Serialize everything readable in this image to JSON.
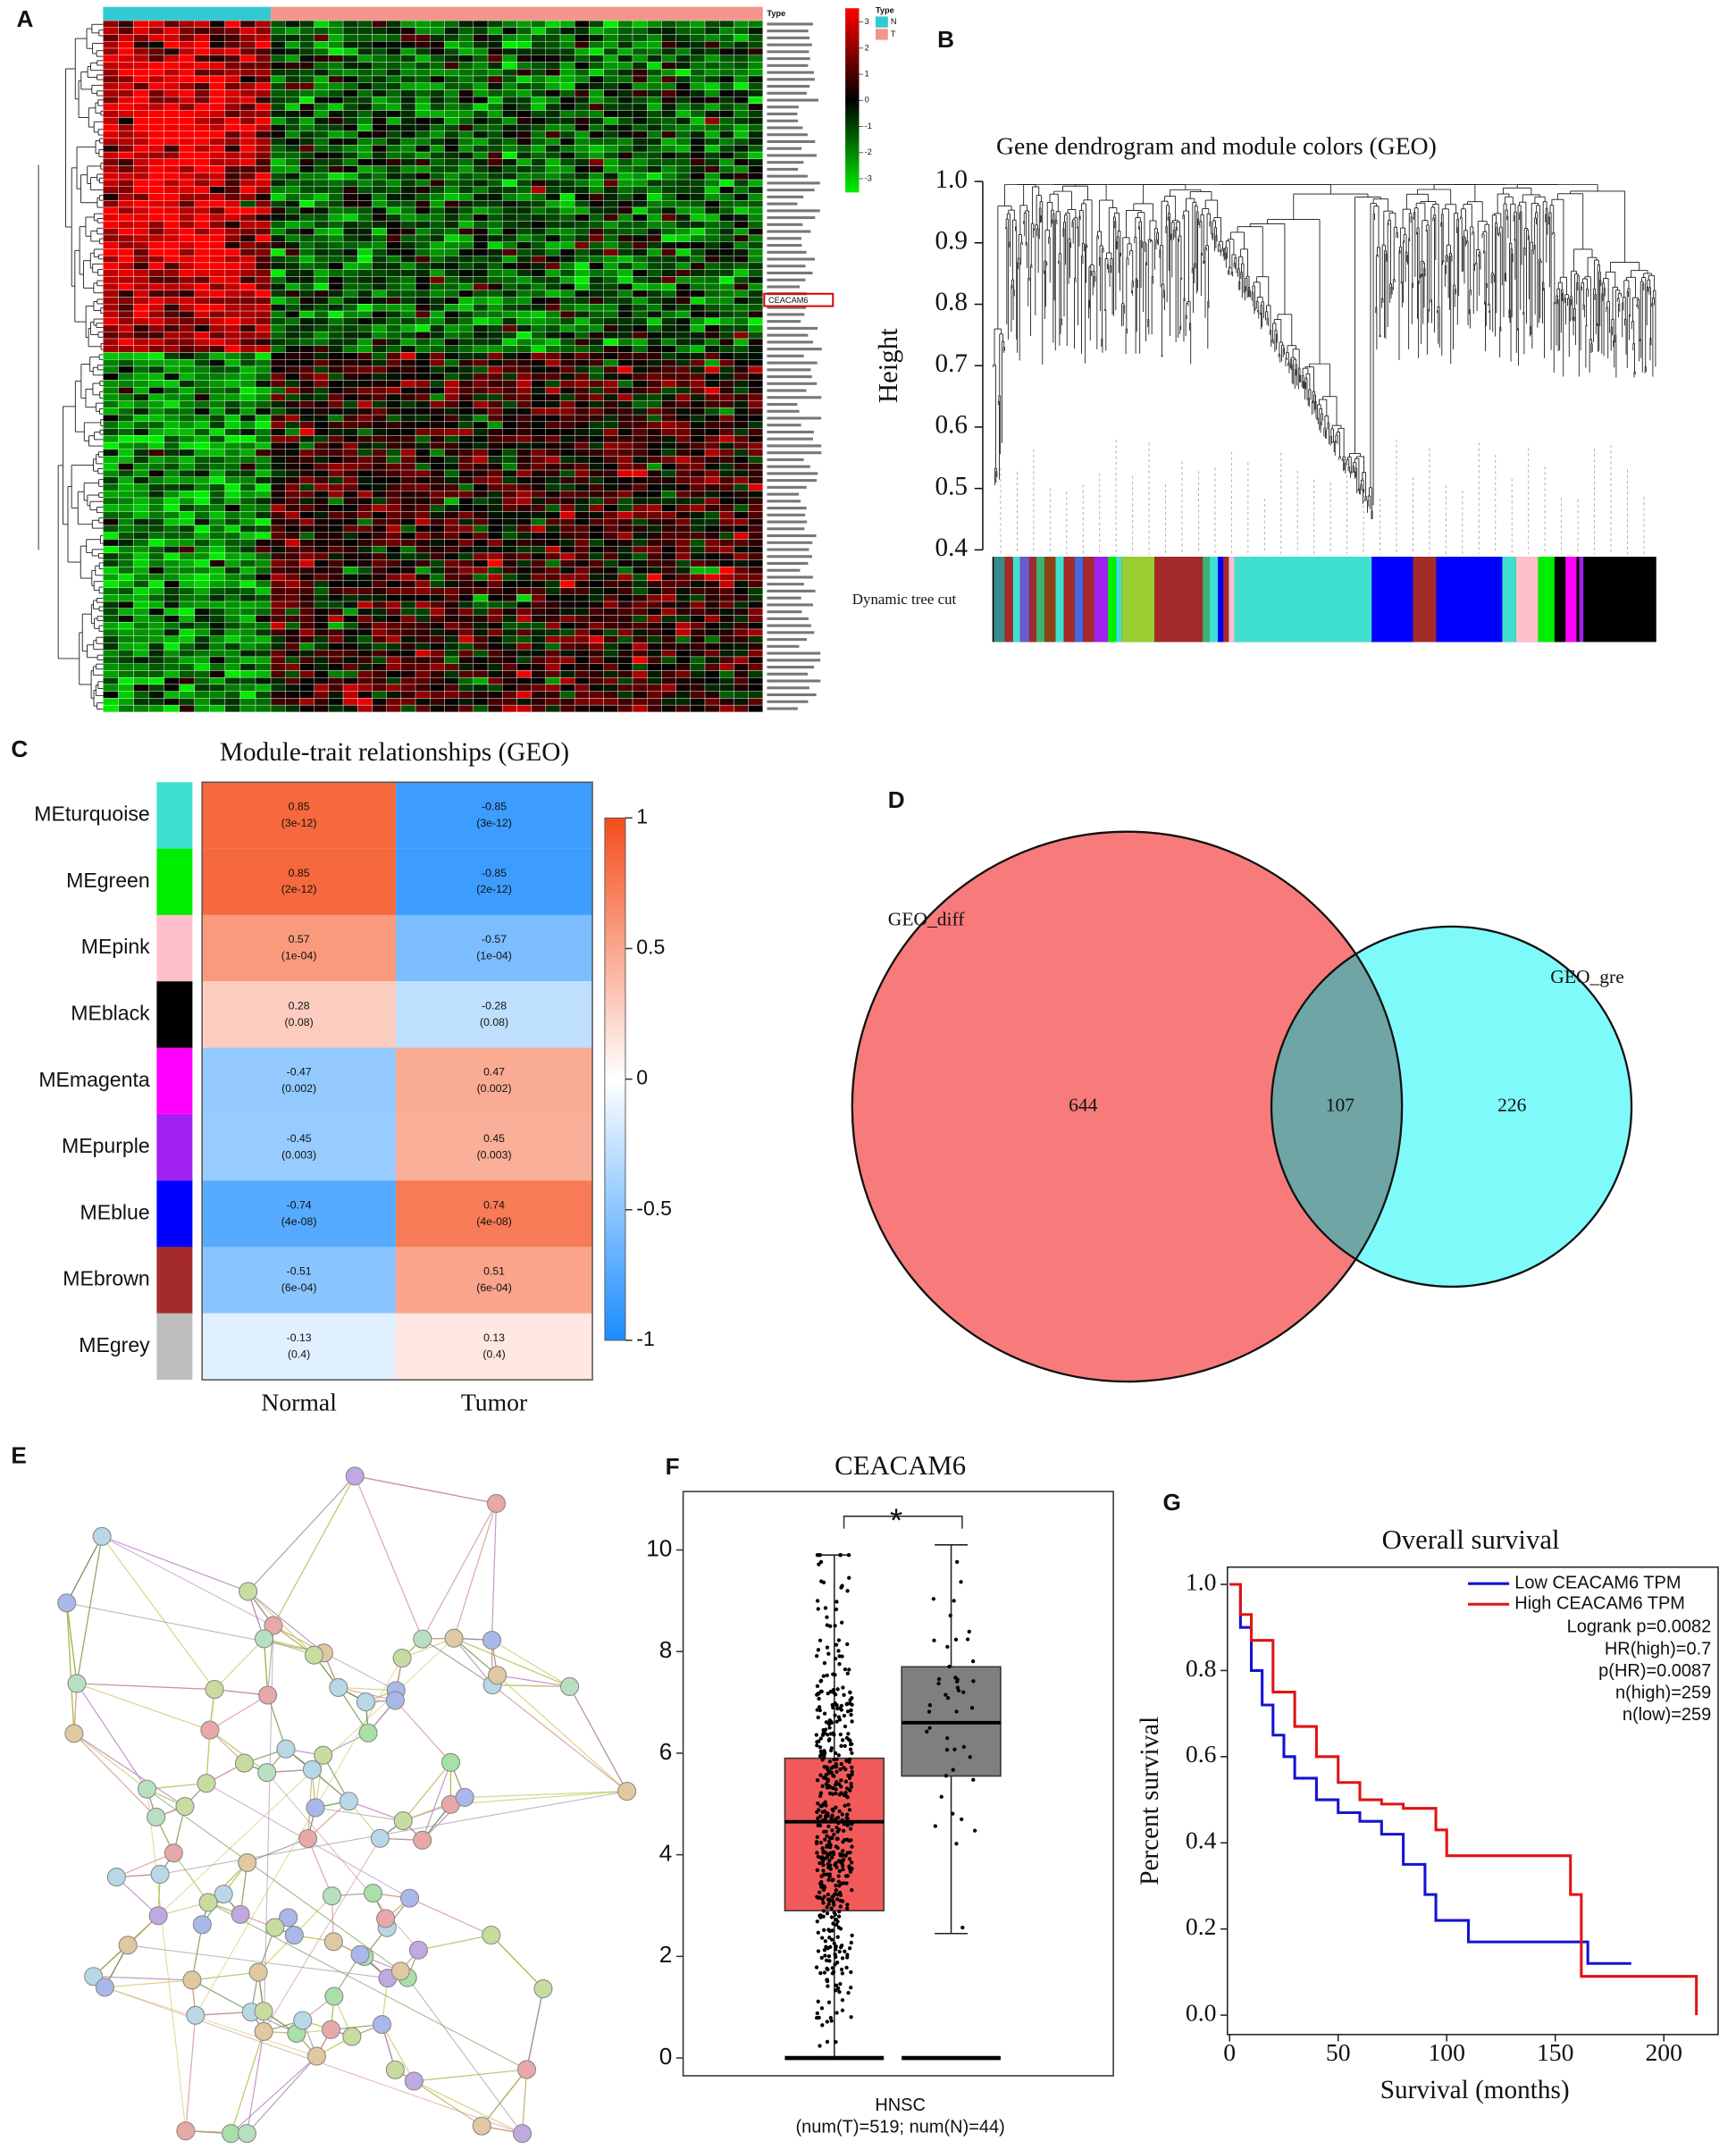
{
  "chart_data": [
    {
      "panel": "A",
      "type": "clustermap",
      "column_annotation": "Type",
      "legend_title": "Type",
      "groups": [
        {
          "name": "N",
          "color": "#33c9d0"
        },
        {
          "name": "T",
          "color": "#f4958c"
        }
      ],
      "clim": [
        -3,
        3
      ],
      "colors": [
        "#00ee00",
        "#000000",
        "#ff0000"
      ],
      "colorbar_ticks": [
        3,
        2,
        1,
        0,
        -1,
        -2,
        -3
      ],
      "highlighted_gene": "CEACAM6"
    },
    {
      "panel": "B",
      "type": "dendrogram",
      "title": "Gene dendrogram and module colors (GEO)",
      "ylabel": "Height",
      "ylim": [
        0.4,
        1
      ],
      "yticks": [
        0.4,
        0.5,
        0.6,
        0.7,
        0.8,
        0.9,
        {
          "value": 1,
          "label": "1.0"
        }
      ],
      "track_label": "Dynamic tree cut"
    },
    {
      "panel": "C",
      "type": "heatmap",
      "title": "Module-trait relationships (GEO)",
      "rows": [
        "MEturquoise",
        "MEgreen",
        "MEpink",
        "MEblack",
        "MEmagenta",
        "MEpurple",
        "MEblue",
        "MEbrown",
        "MEgrey"
      ],
      "row_colors": [
        "#40e0d0",
        "#00ee00",
        "#ffc0cb",
        "#000000",
        "#ff00ff",
        "#a020f0",
        "#0000ff",
        "#a52a2a",
        "#bebebe"
      ],
      "columns": [
        "Normal",
        "Tumor"
      ],
      "values": [
        [
          0.85,
          -0.85
        ],
        [
          0.85,
          -0.85
        ],
        [
          0.57,
          -0.57
        ],
        [
          0.28,
          -0.28
        ],
        [
          -0.47,
          0.47
        ],
        [
          -0.45,
          0.45
        ],
        [
          -0.74,
          0.74
        ],
        [
          -0.51,
          0.51
        ],
        [
          -0.13,
          0.13
        ]
      ],
      "p_labels": [
        [
          "(3e-12)",
          "(3e-12)"
        ],
        [
          "(2e-12)",
          "(2e-12)"
        ],
        [
          "(1e-04)",
          "(1e-04)"
        ],
        [
          "(0.08)",
          "(0.08)"
        ],
        [
          "(0.002)",
          "(0.002)"
        ],
        [
          "(0.003)",
          "(0.003)"
        ],
        [
          "(4e-08)",
          "(4e-08)"
        ],
        [
          "(6e-04)",
          "(6e-04)"
        ],
        [
          "(0.4)",
          "(0.4)"
        ]
      ],
      "clim": [
        -1,
        1
      ],
      "colors": [
        "#1a8cff",
        "#ffffff",
        "#f44d1b"
      ],
      "colorbar_ticks": [
        1,
        0.5,
        0,
        -0.5,
        -1
      ]
    },
    {
      "panel": "D",
      "type": "venn",
      "sets": [
        {
          "name": "GEO_diff",
          "color": "#f87b7b"
        },
        {
          "name": "GEO_gre",
          "color": "#7ffafa"
        }
      ],
      "overlap_color": "#6fa6a5",
      "values": [
        644,
        107,
        226
      ]
    },
    {
      "panel": "E",
      "type": "network"
    },
    {
      "panel": "F",
      "type": "box",
      "title": "CEACAM6",
      "xlabel": "HNSC",
      "xsublabel": "(num(T)=519; num(N)=44)",
      "ylim": [
        -0.35,
        11.15
      ],
      "yticks": [
        0,
        2,
        4,
        6,
        8,
        10
      ],
      "boxes": [
        {
          "color": "#f25a5a",
          "whisker_low": 0,
          "q1": 2.9,
          "median": 4.65,
          "q3": 5.9,
          "whisker_high": 9.9
        },
        {
          "color": "#7f7f7f",
          "whisker_low": 2.45,
          "q1": 5.55,
          "median": 6.6,
          "q3": 7.7,
          "whisker_high": 10.1
        }
      ],
      "annotation": "*",
      "annotation_color": "#e8312f"
    },
    {
      "panel": "G",
      "type": "line",
      "step": true,
      "title": "Overall survival",
      "xlabel": "Survival (months)",
      "ylabel": "Percent survival",
      "xlim": [
        -1,
        225
      ],
      "ylim": [
        -0.045,
        1.04
      ],
      "xticks": [
        0,
        50,
        100,
        150,
        200
      ],
      "yticks": [
        {
          "value": 0,
          "label": "0.0"
        },
        0.2,
        0.4,
        0.6,
        0.8,
        {
          "value": 1,
          "label": "1.0"
        }
      ],
      "legend": "upper right",
      "series": [
        {
          "name": "Low CEACAM6 TPM",
          "color": "#1414d2",
          "x": [
            0,
            5,
            10,
            15,
            20,
            25,
            30,
            40,
            50,
            60,
            70,
            80,
            90,
            95,
            110,
            160,
            165,
            185
          ],
          "values": [
            1,
            0.9,
            0.8,
            0.72,
            0.65,
            0.6,
            0.55,
            0.5,
            0.47,
            0.45,
            0.42,
            0.35,
            0.28,
            0.22,
            0.17,
            0.17,
            0.12,
            0.12
          ]
        },
        {
          "name": "High CEACAM6 TPM",
          "color": "#e01414",
          "x": [
            0,
            5,
            10,
            20,
            30,
            40,
            50,
            60,
            70,
            80,
            95,
            100,
            157,
            162,
            215,
            215
          ],
          "values": [
            1,
            0.93,
            0.87,
            0.75,
            0.67,
            0.6,
            0.54,
            0.5,
            0.49,
            0.48,
            0.43,
            0.37,
            0.28,
            0.09,
            0.09,
            0
          ]
        }
      ],
      "annotations": [
        "Logrank p=0.0082",
        "HR(high)=0.7",
        "p(HR)=0.0087",
        "n(high)=259",
        "n(low)=259"
      ]
    }
  ]
}
